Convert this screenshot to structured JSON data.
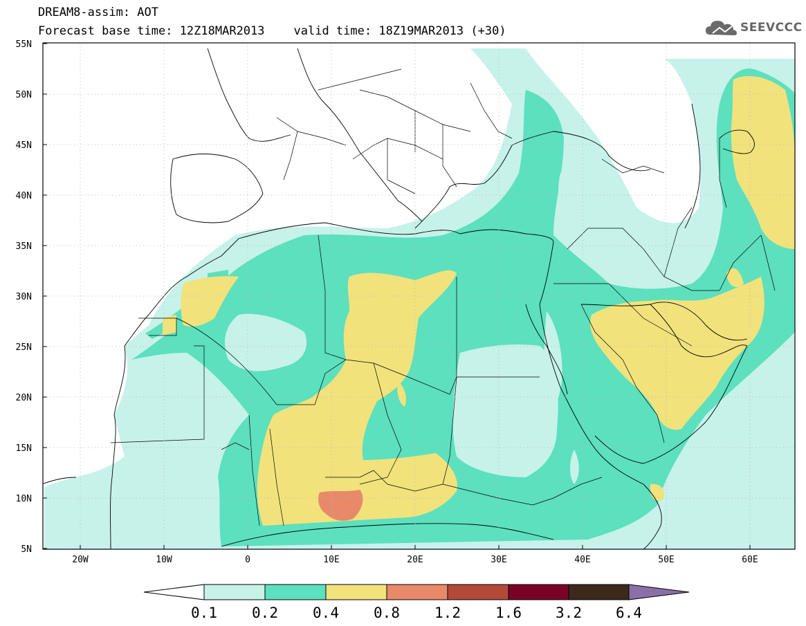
{
  "title": {
    "line1": "DREAM8-assim: AOT",
    "base_time": "Forecast base time: 12Z18MAR2013",
    "valid_time": "valid time: 18Z19MAR2013 (+30)"
  },
  "logo": {
    "text": "SEEVCCC",
    "icon": "cloud-icon"
  },
  "map": {
    "projection": "lat-lon",
    "lon_range": [
      -25,
      65
    ],
    "lat_range": [
      5,
      55
    ],
    "lat_ticks": [
      "5N",
      "10N",
      "15N",
      "20N",
      "25N",
      "30N",
      "35N",
      "40N",
      "45N",
      "50N",
      "55N"
    ],
    "lon_ticks": [
      "20W",
      "10W",
      "0",
      "10E",
      "20E",
      "30E",
      "40E",
      "50E",
      "60E"
    ],
    "grid": "dotted",
    "background": "#ffffff"
  },
  "colorbar": {
    "labels": [
      "0.1",
      "0.2",
      "0.4",
      "0.8",
      "1.2",
      "1.6",
      "3.2",
      "6.4"
    ],
    "colors": [
      "#c6f2ea",
      "#5ce0bd",
      "#f2e27c",
      "#e8896a",
      "#b34a38",
      "#7a0028",
      "#3b2a1a",
      "#8a6fa8"
    ],
    "below_color": "#ffffff"
  }
}
